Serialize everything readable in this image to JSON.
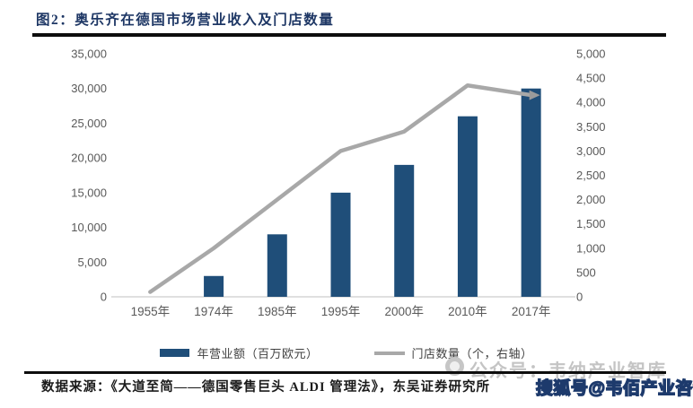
{
  "figure": {
    "title": "图2：奥乐齐在德国市场营业收入及门店数量",
    "source": "数据来源：《大道至简——德国零售巨头 ALDI 管理法》，东吴证券研究所"
  },
  "watermarks": {
    "gray_badge": "公众号：韦纳产业智库",
    "sohu_badge": "搜狐号@韦佰产业咨询"
  },
  "chart_data": {
    "type": "bar",
    "subtype": "combo-bar-line-dual-axis",
    "categories": [
      "1955年",
      "1974年",
      "1985年",
      "1995年",
      "2000年",
      "2010年",
      "2017年"
    ],
    "series": [
      {
        "name": "年营业额（百万欧元）",
        "type": "bar",
        "axis": "left",
        "color": "#1f4e79",
        "values": [
          0,
          3000,
          9000,
          15000,
          19000,
          26000,
          30000
        ]
      },
      {
        "name": "门店数量（个，右轴）",
        "type": "line",
        "axis": "right",
        "color": "#a8a8a8",
        "values": [
          100,
          1000,
          2000,
          3000,
          3400,
          4350,
          4150
        ]
      }
    ],
    "left_axis": {
      "min": 0,
      "max": 35000,
      "step": 5000
    },
    "right_axis": {
      "min": 0,
      "max": 5000,
      "step": 500
    },
    "grid": false,
    "legend_position": "bottom",
    "line_end_arrow": true,
    "arrow_color": "#9b9b9b",
    "axis_line_color": "#d6d6d6",
    "tick_text_color": "#595959"
  }
}
